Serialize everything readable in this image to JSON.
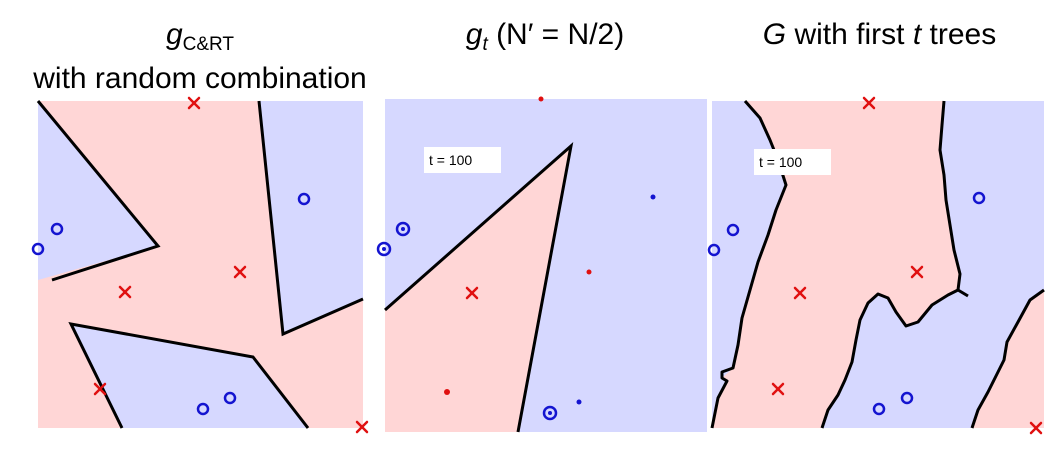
{
  "panels": [
    {
      "title_main": "g",
      "title_sub": "C&RT",
      "title_line2": "with random combination"
    },
    {
      "title_main": "g",
      "title_sub": "t",
      "title_rest": " (N′ = N/2)"
    },
    {
      "title_main": "G",
      "title_rest": " with first ",
      "title_var": "t",
      "title_end": " trees"
    }
  ],
  "iteration_label_1": "t = 100",
  "iteration_label_2": "t = 100",
  "colors": {
    "positive_region": "#ffd6d6",
    "negative_region": "#d6d8ff",
    "cross": "#e01010",
    "circle": "#1414d0",
    "boundary": "#000000"
  }
}
